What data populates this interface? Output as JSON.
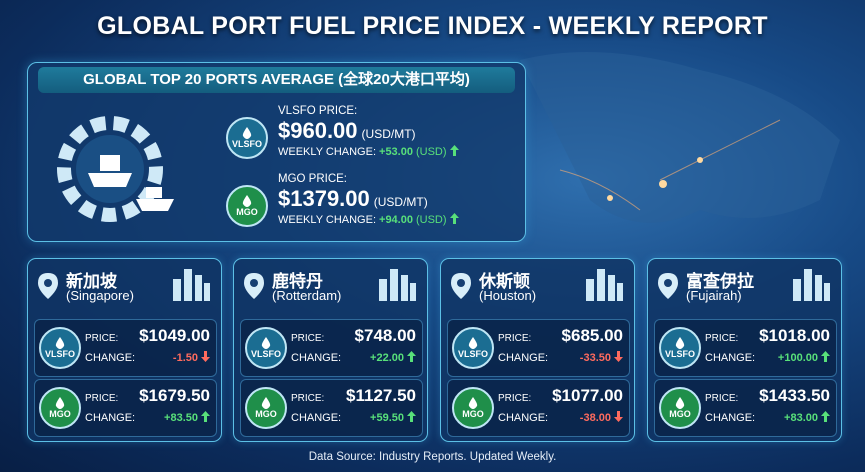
{
  "title": "GLOBAL PORT FUEL PRICE INDEX - WEEKLY REPORT",
  "summary": {
    "title": "GLOBAL TOP 20 PORTS AVERAGE (全球20大港口平均)",
    "items": [
      {
        "badge": "VLSFO",
        "label": "VLSFO PRICE:",
        "price": "$960.00",
        "unit": "(USD/MT)",
        "change_label": "WEEKLY CHANGE:",
        "change": "+53.00",
        "change_unit": "(USD)"
      },
      {
        "badge": "MGO",
        "label": "MGO PRICE:",
        "price": "$1379.00",
        "unit": "(USD/MT)",
        "change_label": "WEEKLY CHANGE:",
        "change": "+94.00",
        "change_unit": "(USD)"
      }
    ]
  },
  "ports": [
    {
      "name": "新加坡",
      "name_en": "(Singapore)",
      "fuels": [
        {
          "badge": "VLSFO",
          "price_label": "PRICE:",
          "price": "$1049.00",
          "change_label": "CHANGE:",
          "change": "-1.50"
        },
        {
          "badge": "MGO",
          "price_label": "PRICE:",
          "price": "$1679.50",
          "change_label": "CHANGE:",
          "change": "+83.50"
        }
      ]
    },
    {
      "name": "鹿特丹",
      "name_en": "(Rotterdam)",
      "fuels": [
        {
          "badge": "VLSFO",
          "price_label": "PRICE:",
          "price": "$748.00",
          "change_label": "CHANGE:",
          "change": "+22.00"
        },
        {
          "badge": "MGO",
          "price_label": "PRICE:",
          "price": "$1127.50",
          "change_label": "CHANGE:",
          "change": "+59.50"
        }
      ]
    },
    {
      "name": "休斯顿",
      "name_en": "(Houston)",
      "fuels": [
        {
          "badge": "VLSFO",
          "price_label": "PRICE:",
          "price": "$685.00",
          "change_label": "CHANGE:",
          "change": "-33.50"
        },
        {
          "badge": "MGO",
          "price_label": "PRICE:",
          "price": "$1077.00",
          "change_label": "CHANGE:",
          "change": "-38.00"
        }
      ]
    },
    {
      "name": "富查伊拉",
      "name_en": "(Fujairah)",
      "fuels": [
        {
          "badge": "VLSFO",
          "price_label": "PRICE:",
          "price": "$1018.00",
          "change_label": "CHANGE:",
          "change": "+100.00"
        },
        {
          "badge": "MGO",
          "price_label": "PRICE:",
          "price": "$1433.50",
          "change_label": "CHANGE:",
          "change": "+83.00"
        }
      ]
    }
  ],
  "footer": "Data Source: Industry Reports. Updated Weekly."
}
